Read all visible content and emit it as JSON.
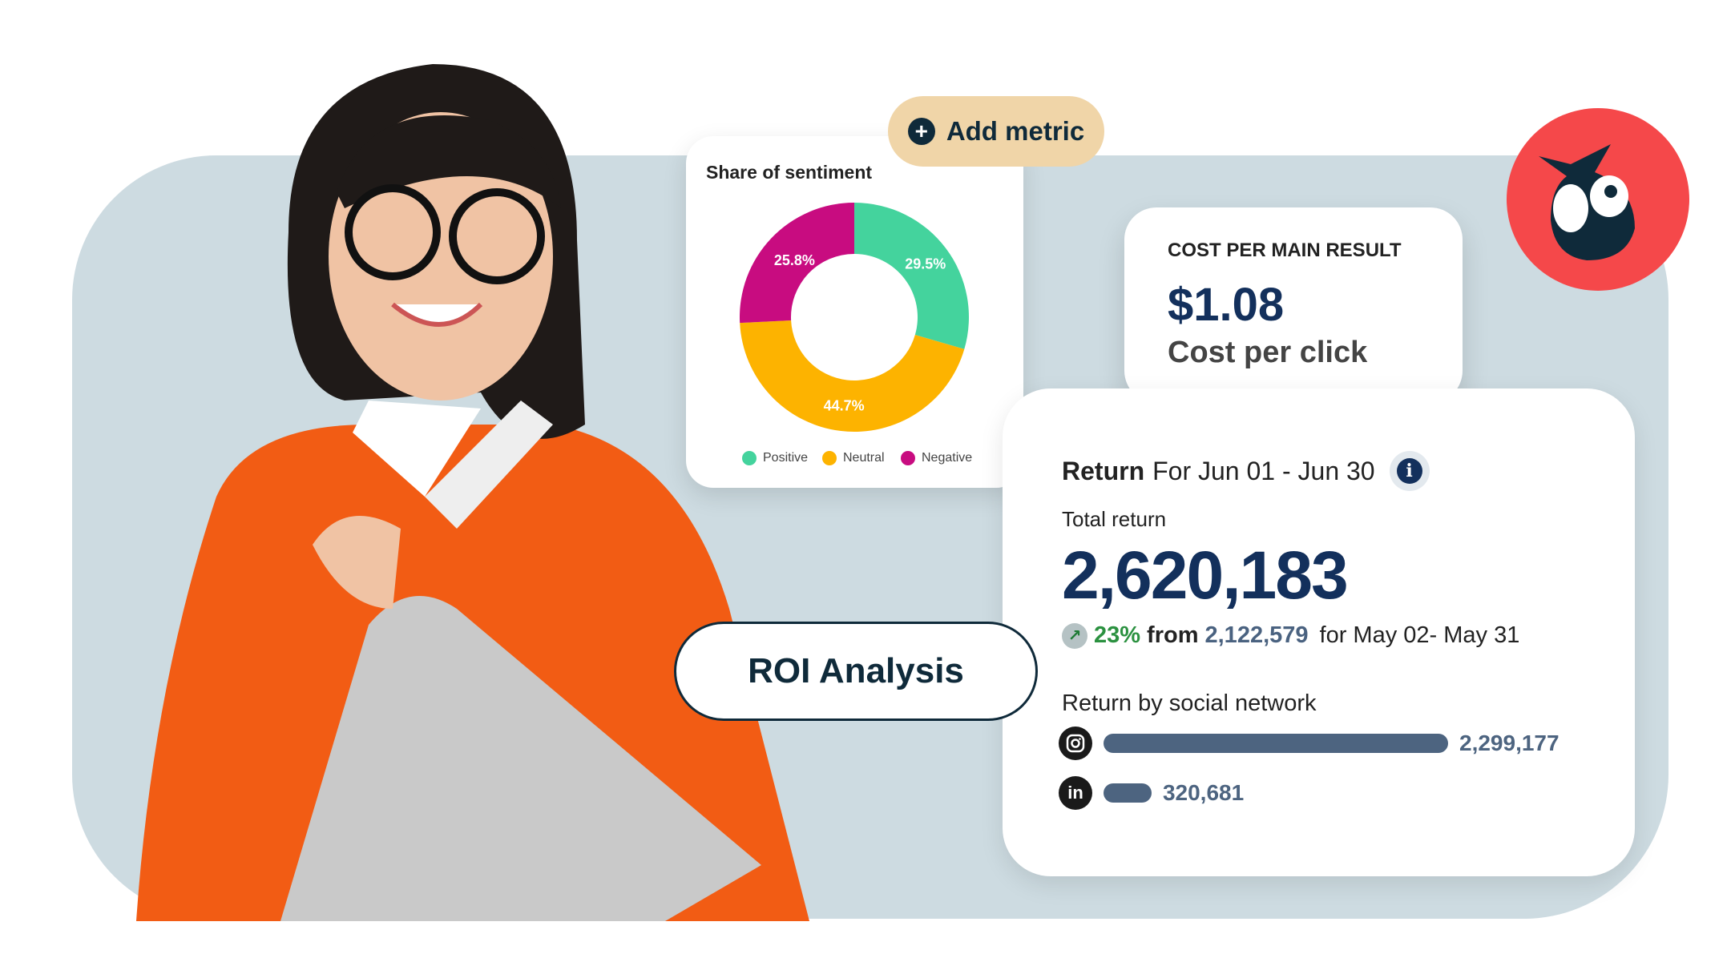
{
  "add_metric": {
    "label": "Add metric",
    "icon": "plus-circle-icon"
  },
  "sentiment": {
    "title": "Share of sentiment",
    "chart_data": {
      "type": "pie",
      "donut": true,
      "title": "Share of sentiment",
      "categories": [
        "Positive",
        "Neutral",
        "Negative"
      ],
      "values": [
        29.5,
        44.7,
        25.8
      ],
      "labels": [
        "29.5%",
        "44.7%",
        "25.8%"
      ],
      "colors": [
        "#44d39d",
        "#fdb300",
        "#c80c80"
      ],
      "legend": "bottom"
    }
  },
  "cost": {
    "label": "COST PER MAIN RESULT",
    "value": "$1.08",
    "sublabel": "Cost per click"
  },
  "return": {
    "title": "Return",
    "range": "For Jun 01 - Jun 30",
    "info_icon": "i",
    "total_label": "Total return",
    "total_value": "2,620,183",
    "change_pct": "23%",
    "from_label": "from",
    "previous_value": "2,122,579",
    "previous_range": "for May 02- May 31",
    "by_network_label": "Return by social network",
    "networks": [
      {
        "name": "instagram",
        "icon": "instagram-icon",
        "value": "2,299,177",
        "amount": 2299177
      },
      {
        "name": "linkedin",
        "icon": "linkedin-icon",
        "value": "320,681",
        "amount": 320681
      }
    ]
  },
  "roi": {
    "label": "ROI Analysis"
  },
  "colors": {
    "navy": "#13305c",
    "background": "#cddbe1",
    "owl_red": "#f5484a",
    "pill": "#f0d5a8"
  }
}
